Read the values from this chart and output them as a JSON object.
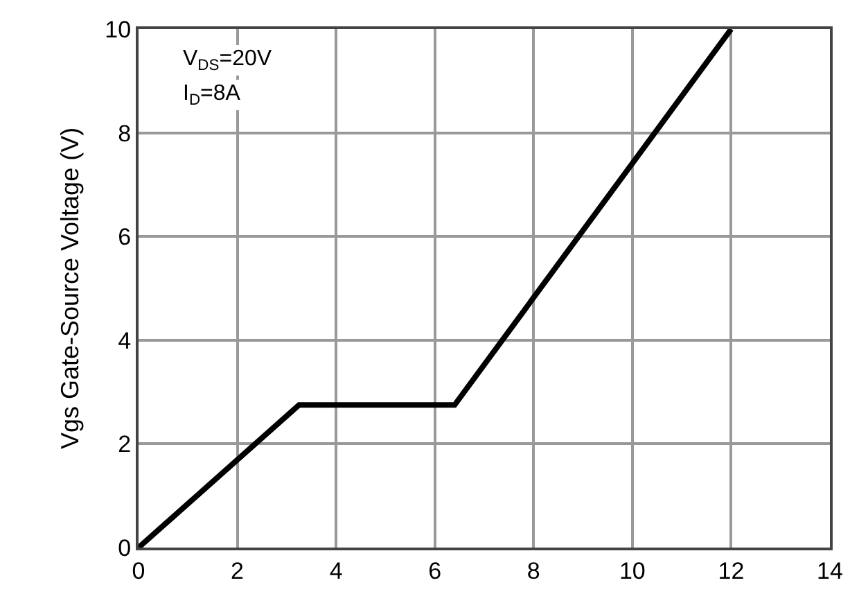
{
  "chart_data": {
    "type": "line",
    "ylabel": "Vgs Gate-Source Voltage (V)",
    "x": [
      0,
      3.25,
      6.4,
      12
    ],
    "series": [
      {
        "color": "#000000",
        "values": [
          0,
          2.75,
          2.75,
          10
        ]
      }
    ],
    "xlim": [
      0,
      14
    ],
    "xticks": [
      0,
      2,
      4,
      6,
      8,
      10,
      12,
      14
    ],
    "ylim": [
      0,
      10
    ],
    "yticks": [
      0,
      2,
      4,
      6,
      8,
      10
    ],
    "grid": true,
    "marker": "none",
    "line_style": "solid",
    "annotations": [
      "V$_{DS}$=20V",
      "I$_{D}$=8A"
    ]
  }
}
